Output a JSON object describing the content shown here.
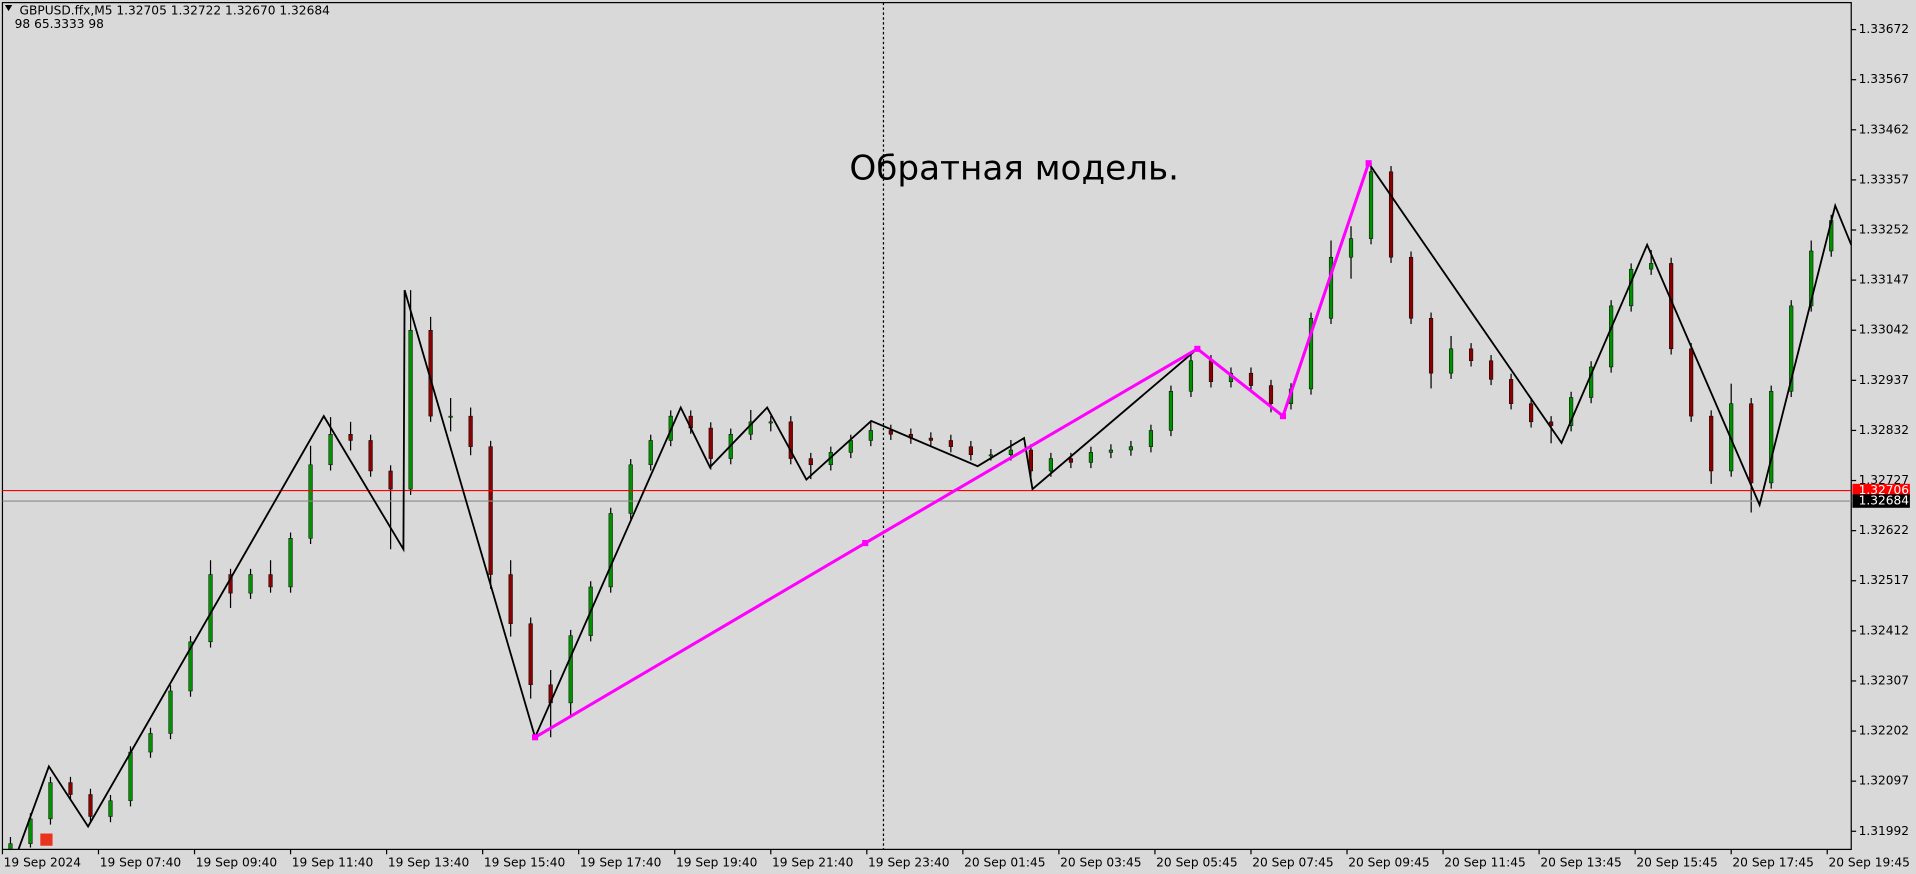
{
  "chart_data": {
    "type": "candlestick",
    "header": "GBPUSD.ffx,M5  1.32705 1.32722 1.32670 1.32684",
    "indicator_line": "98  65.3333  98",
    "annotation": "Обратная модель.",
    "xlim": [
      0,
      462
    ],
    "ylim": [
      1.31954,
      1.33726
    ],
    "yticks": [
      1.33672,
      1.33567,
      1.33462,
      1.33357,
      1.33252,
      1.33147,
      1.33042,
      1.32937,
      1.32832,
      1.32727,
      1.32622,
      1.32517,
      1.32412,
      1.32307,
      1.32202,
      1.32097,
      1.31992
    ],
    "xticks": [
      {
        "value": 0,
        "label": "19 Sep 2024"
      },
      {
        "value": 24,
        "label": "19 Sep 07:40"
      },
      {
        "value": 48,
        "label": "19 Sep 09:40"
      },
      {
        "value": 72,
        "label": "19 Sep 11:40"
      },
      {
        "value": 96,
        "label": "19 Sep 13:40"
      },
      {
        "value": 120,
        "label": "19 Sep 15:40"
      },
      {
        "value": 144,
        "label": "19 Sep 17:40"
      },
      {
        "value": 168,
        "label": "19 Sep 19:40"
      },
      {
        "value": 192,
        "label": "19 Sep 21:40"
      },
      {
        "value": 216,
        "label": "19 Sep 23:40"
      },
      {
        "value": 240,
        "label": "20 Sep 01:45"
      },
      {
        "value": 264,
        "label": "20 Sep 03:45"
      },
      {
        "value": 288,
        "label": "20 Sep 05:45"
      },
      {
        "value": 312,
        "label": "20 Sep 07:45"
      },
      {
        "value": 336,
        "label": "20 Sep 09:45"
      },
      {
        "value": 360,
        "label": "20 Sep 11:45"
      },
      {
        "value": 384,
        "label": "20 Sep 13:45"
      },
      {
        "value": 408,
        "label": "20 Sep 15:45"
      },
      {
        "value": 432,
        "label": "20 Sep 17:45"
      },
      {
        "value": 456,
        "label": "20 Sep 19:45"
      }
    ],
    "candles": {
      "up_color": "#009000",
      "down_color": "#8b0000",
      "x": [
        2,
        7,
        12,
        17,
        22,
        27,
        32,
        37,
        42,
        47,
        52,
        57,
        62,
        67,
        72,
        77,
        82,
        87,
        92,
        97,
        102,
        107,
        112,
        117,
        122,
        127,
        132,
        137,
        142,
        147,
        152,
        157,
        162,
        167,
        172,
        177,
        182,
        187,
        192,
        197,
        202,
        207,
        212,
        217,
        222,
        227,
        232,
        237,
        242,
        247,
        252,
        257,
        262,
        267,
        272,
        277,
        282,
        287,
        292,
        297,
        302,
        307,
        312,
        317,
        322,
        327,
        332,
        337,
        342,
        347,
        352,
        357,
        362,
        367,
        372,
        377,
        382,
        387,
        392,
        397,
        402,
        407,
        412,
        417,
        422,
        427,
        432,
        437,
        442,
        447,
        452,
        457
      ],
      "open": [
        1.31954,
        1.31966,
        1.32018,
        1.32094,
        1.32069,
        1.32023,
        1.32056,
        1.32158,
        1.32197,
        1.32286,
        1.32389,
        1.3253,
        1.32491,
        1.3253,
        1.32504,
        1.32606,
        1.3276,
        1.32824,
        1.32811,
        1.32747,
        1.32709,
        1.33042,
        1.32862,
        1.32862,
        1.32798,
        1.3253,
        1.32427,
        1.32299,
        1.32261,
        1.32402,
        1.32504,
        1.32658,
        1.3276,
        1.32811,
        1.32862,
        1.32837,
        1.32773,
        1.32824,
        1.3285,
        1.3285,
        1.32773,
        1.3276,
        1.32786,
        1.32811,
        1.32832,
        1.32824,
        1.32816,
        1.32811,
        1.32798,
        1.32781,
        1.32781,
        1.32791,
        1.32747,
        1.32773,
        1.32765,
        1.32786,
        1.32791,
        1.32798,
        1.32832,
        1.32914,
        1.32978,
        1.32934,
        1.32952,
        1.32926,
        1.32888,
        1.32919,
        1.33067,
        1.33195,
        1.33234,
        1.33374,
        1.33195,
        1.33067,
        1.32952,
        1.33003,
        1.32978,
        1.32939,
        1.32888,
        1.3285,
        1.32842,
        1.32901,
        1.32965,
        1.33093,
        1.3317,
        1.33182,
        1.33003,
        1.32862,
        1.32747,
        1.32888,
        1.32722,
        1.32914,
        1.33093,
        1.33208
      ],
      "high": [
        1.3198,
        1.3203,
        1.32106,
        1.32106,
        1.32081,
        1.32068,
        1.3217,
        1.32209,
        1.32298,
        1.32401,
        1.3256,
        1.32542,
        1.32542,
        1.3256,
        1.32618,
        1.328,
        1.3286,
        1.3285,
        1.32823,
        1.32759,
        1.33126,
        1.3307,
        1.329,
        1.3288,
        1.3281,
        1.3256,
        1.3244,
        1.3233,
        1.32414,
        1.32516,
        1.3267,
        1.32772,
        1.32823,
        1.32874,
        1.32874,
        1.32849,
        1.32836,
        1.32875,
        1.32862,
        1.32862,
        1.32785,
        1.32798,
        1.32823,
        1.3285,
        1.32844,
        1.32836,
        1.32828,
        1.32823,
        1.3281,
        1.32793,
        1.32812,
        1.32803,
        1.32785,
        1.32785,
        1.32798,
        1.32803,
        1.3281,
        1.32844,
        1.32926,
        1.3299,
        1.3299,
        1.32964,
        1.32964,
        1.32938,
        1.32931,
        1.33079,
        1.3323,
        1.3326,
        1.33393,
        1.33386,
        1.33207,
        1.33079,
        1.3303,
        1.33015,
        1.3299,
        1.32951,
        1.329,
        1.32862,
        1.32913,
        1.32977,
        1.33105,
        1.33182,
        1.3321,
        1.33194,
        1.33015,
        1.32874,
        1.3293,
        1.329,
        1.32926,
        1.33105,
        1.3323,
        1.33284
      ],
      "low": [
        1.31955,
        1.31958,
        1.32006,
        1.32057,
        1.32011,
        1.32011,
        1.32044,
        1.32146,
        1.32185,
        1.32274,
        1.32377,
        1.3246,
        1.32479,
        1.32492,
        1.32492,
        1.32594,
        1.32748,
        1.3279,
        1.32735,
        1.32583,
        1.32697,
        1.3285,
        1.3283,
        1.3278,
        1.325,
        1.324,
        1.3227,
        1.32189,
        1.3223,
        1.3239,
        1.32492,
        1.32646,
        1.32748,
        1.32799,
        1.32825,
        1.3275,
        1.32761,
        1.32812,
        1.3283,
        1.32761,
        1.3273,
        1.32748,
        1.32774,
        1.32799,
        1.32812,
        1.32804,
        1.32799,
        1.32786,
        1.32769,
        1.32769,
        1.32769,
        1.32725,
        1.32735,
        1.32753,
        1.32753,
        1.32774,
        1.32779,
        1.32786,
        1.3282,
        1.32902,
        1.32922,
        1.32922,
        1.32914,
        1.3287,
        1.32876,
        1.32907,
        1.33055,
        1.3315,
        1.33222,
        1.33183,
        1.33055,
        1.3292,
        1.3294,
        1.32966,
        1.32927,
        1.32876,
        1.32838,
        1.32805,
        1.3283,
        1.32889,
        1.32953,
        1.33081,
        1.33158,
        1.32991,
        1.3285,
        1.3272,
        1.32735,
        1.3266,
        1.3271,
        1.32902,
        1.33081,
        1.33196
      ],
      "close": [
        1.31966,
        1.32018,
        1.32094,
        1.32069,
        1.32023,
        1.32056,
        1.32158,
        1.32197,
        1.32286,
        1.32389,
        1.3253,
        1.32491,
        1.3253,
        1.32504,
        1.32606,
        1.3276,
        1.32824,
        1.32811,
        1.32747,
        1.32709,
        1.33042,
        1.32862,
        1.32862,
        1.32798,
        1.3253,
        1.32427,
        1.32299,
        1.32261,
        1.32402,
        1.32504,
        1.32658,
        1.3276,
        1.32811,
        1.32862,
        1.32837,
        1.32773,
        1.32824,
        1.3285,
        1.3285,
        1.32773,
        1.3276,
        1.32786,
        1.32811,
        1.32832,
        1.32824,
        1.32816,
        1.32811,
        1.32798,
        1.32781,
        1.32781,
        1.32791,
        1.32747,
        1.32773,
        1.32765,
        1.32786,
        1.32791,
        1.32798,
        1.32832,
        1.32914,
        1.32978,
        1.32934,
        1.32952,
        1.32926,
        1.32888,
        1.32919,
        1.33067,
        1.33195,
        1.33234,
        1.33374,
        1.33195,
        1.33067,
        1.32952,
        1.33003,
        1.32978,
        1.32939,
        1.32888,
        1.3285,
        1.32842,
        1.32901,
        1.32965,
        1.33093,
        1.3317,
        1.33182,
        1.33003,
        1.32862,
        1.32747,
        1.32888,
        1.32722,
        1.32914,
        1.33093,
        1.33208,
        1.33272
      ]
    },
    "zigzag": {
      "color": "#000000",
      "x": [
        4.0,
        11.6,
        21.4,
        80.3,
        100.2,
        100.5,
        133.1,
        169.5,
        176.8,
        191.1,
        200.9,
        217.1,
        243.7,
        255.3,
        257.4,
        298.6,
        320.0,
        341.4,
        389.6,
        411.0,
        439.1,
        458.0,
        462.0
      ],
      "values": [
        1.31954,
        1.32128,
        1.32002,
        1.32862,
        1.32583,
        1.33126,
        1.32189,
        1.3288,
        1.32755,
        1.3288,
        1.32729,
        1.32852,
        1.32757,
        1.32816,
        1.32709,
        1.33003,
        1.32862,
        1.33392,
        1.32806,
        1.33221,
        1.32676,
        1.33303,
        1.33221
      ]
    },
    "pattern": {
      "color": "#ff00ff",
      "x": [
        133.1,
        215.6,
        298.6,
        320.0,
        341.4
      ],
      "values": [
        1.32189,
        1.32596,
        1.33003,
        1.32862,
        1.33392
      ]
    },
    "price_lines": [
      {
        "value": 1.32706,
        "color": "#ff0000",
        "label_bg": "#ff0000"
      },
      {
        "value": 1.32684,
        "color": "#8c8c8c",
        "label_bg": "#000000"
      }
    ]
  }
}
